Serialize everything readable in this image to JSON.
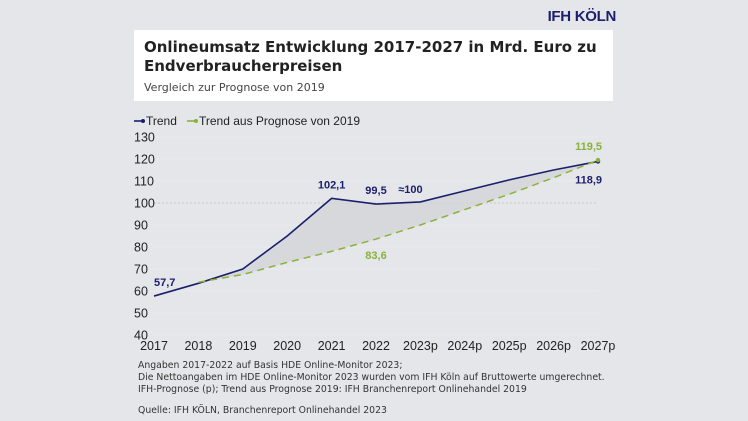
{
  "logo": "IFH KÖLN",
  "title": "Onlineumsatz Entwicklung 2017-2027 in Mrd. Euro zu Endverbraucherpreisen",
  "subtitle": "Vergleich zur Prognose von 2019",
  "notes": [
    "Angaben 2017-2022 auf Basis HDE Online-Monitor 2023;",
    "Die Nettoangaben im HDE Online-Monitor 2023 wurden vom IFH Köln auf Bruttowerte umgerechnet.",
    "IFH-Prognose (p); Trend aus Prognose 2019: IFH Branchenreport Onlinehandel 2019"
  ],
  "source": "Quelle: IFH KÖLN, Branchenreport Onlinehandel 2023",
  "chart_data": {
    "type": "line",
    "categories": [
      "2017",
      "2018",
      "2019",
      "2020",
      "2021",
      "2022",
      "2023p",
      "2024p",
      "2025p",
      "2026p",
      "2027p"
    ],
    "ylim": [
      40,
      130
    ],
    "yticks": [
      40,
      50,
      60,
      70,
      80,
      90,
      100,
      110,
      120,
      130
    ],
    "legend_position": "top-left",
    "reference_line": 100,
    "series": [
      {
        "name": "Trend",
        "color": "#1c1f6b",
        "style": "solid",
        "values": [
          57.7,
          63.5,
          70,
          85,
          102.1,
          99.5,
          100.5,
          105.5,
          110.5,
          115,
          118.9
        ]
      },
      {
        "name": "Trend aus Prognose von 2019",
        "color": "#8ab23a",
        "style": "dashed",
        "values": [
          null,
          64,
          67.5,
          73,
          78,
          83.6,
          90,
          97,
          104,
          111.5,
          119.5
        ]
      }
    ],
    "annotations": [
      {
        "series": 0,
        "index": 0,
        "text": "57,7"
      },
      {
        "series": 0,
        "index": 4,
        "text": "102,1"
      },
      {
        "series": 0,
        "index": 5,
        "text": "99,5"
      },
      {
        "series": 0,
        "index": 6,
        "text": "≈100"
      },
      {
        "series": 0,
        "index": 10,
        "text": "118,9"
      },
      {
        "series": 1,
        "index": 5,
        "text": "83,6"
      },
      {
        "series": 1,
        "index": 10,
        "text": "119,5"
      }
    ]
  }
}
